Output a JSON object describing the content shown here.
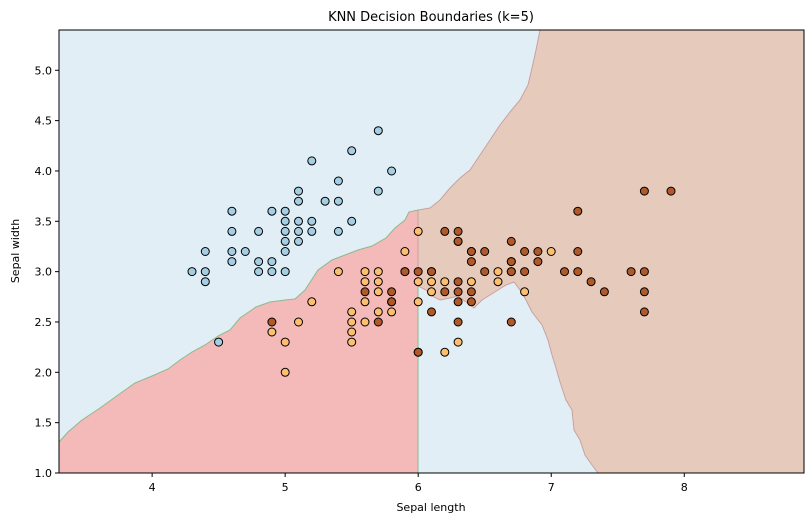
{
  "chart_data": {
    "type": "scatter",
    "title": "KNN Decision Boundaries (k=5)",
    "xlabel": "Sepal length",
    "ylabel": "Sepal width",
    "xlim": [
      3.3,
      8.9
    ],
    "ylim": [
      1.0,
      5.4
    ],
    "xticks": [
      4,
      5,
      6,
      7,
      8
    ],
    "yticks": [
      1.0,
      1.5,
      2.0,
      2.5,
      3.0,
      3.5,
      4.0,
      4.5,
      5.0
    ],
    "grid": false,
    "legend": "none",
    "regions": [
      {
        "class": "class-0",
        "color": "#e1eef5"
      },
      {
        "class": "class-1",
        "color": "#f4b9b9"
      },
      {
        "class": "class-2",
        "color": "#e6cbbd"
      }
    ],
    "series": [
      {
        "class": "class-0",
        "color": "#a6cee3",
        "points": [
          [
            4.3,
            3.0
          ],
          [
            4.4,
            3.0
          ],
          [
            4.4,
            2.9
          ],
          [
            4.4,
            3.2
          ],
          [
            4.5,
            2.3
          ],
          [
            4.6,
            3.1
          ],
          [
            4.6,
            3.2
          ],
          [
            4.6,
            3.4
          ],
          [
            4.6,
            3.6
          ],
          [
            4.7,
            3.2
          ],
          [
            4.8,
            3.0
          ],
          [
            4.8,
            3.1
          ],
          [
            4.8,
            3.4
          ],
          [
            4.9,
            3.0
          ],
          [
            4.9,
            3.1
          ],
          [
            4.9,
            3.6
          ],
          [
            5.0,
            3.0
          ],
          [
            5.0,
            3.2
          ],
          [
            5.0,
            3.3
          ],
          [
            5.0,
            3.4
          ],
          [
            5.0,
            3.5
          ],
          [
            5.0,
            3.6
          ],
          [
            5.1,
            3.3
          ],
          [
            5.1,
            3.4
          ],
          [
            5.1,
            3.5
          ],
          [
            5.1,
            3.7
          ],
          [
            5.1,
            3.8
          ],
          [
            5.2,
            3.4
          ],
          [
            5.2,
            3.5
          ],
          [
            5.2,
            4.1
          ],
          [
            5.3,
            3.7
          ],
          [
            5.4,
            3.4
          ],
          [
            5.4,
            3.7
          ],
          [
            5.4,
            3.9
          ],
          [
            5.5,
            3.5
          ],
          [
            5.5,
            4.2
          ],
          [
            5.7,
            3.8
          ],
          [
            5.7,
            4.4
          ],
          [
            5.8,
            4.0
          ]
        ]
      },
      {
        "class": "class-1",
        "color": "#fdbf6f",
        "points": [
          [
            4.9,
            2.4
          ],
          [
            5.0,
            2.0
          ],
          [
            5.0,
            2.3
          ],
          [
            5.1,
            2.5
          ],
          [
            5.2,
            2.7
          ],
          [
            5.4,
            3.0
          ],
          [
            5.5,
            2.3
          ],
          [
            5.5,
            2.4
          ],
          [
            5.5,
            2.5
          ],
          [
            5.5,
            2.6
          ],
          [
            5.6,
            2.5
          ],
          [
            5.6,
            2.7
          ],
          [
            5.6,
            2.9
          ],
          [
            5.6,
            3.0
          ],
          [
            5.7,
            2.6
          ],
          [
            5.7,
            2.8
          ],
          [
            5.7,
            2.9
          ],
          [
            5.7,
            3.0
          ],
          [
            5.8,
            2.6
          ],
          [
            5.8,
            2.7
          ],
          [
            5.9,
            3.0
          ],
          [
            5.9,
            3.2
          ],
          [
            6.0,
            2.2
          ],
          [
            6.0,
            2.7
          ],
          [
            6.0,
            2.9
          ],
          [
            6.0,
            3.4
          ],
          [
            6.1,
            2.8
          ],
          [
            6.1,
            2.9
          ],
          [
            6.1,
            3.0
          ],
          [
            6.2,
            2.2
          ],
          [
            6.2,
            2.9
          ],
          [
            6.3,
            2.3
          ],
          [
            6.3,
            3.3
          ],
          [
            6.4,
            2.9
          ],
          [
            6.4,
            3.2
          ],
          [
            6.6,
            2.9
          ],
          [
            6.6,
            3.0
          ],
          [
            6.7,
            3.0
          ],
          [
            6.7,
            3.1
          ],
          [
            6.8,
            2.8
          ],
          [
            7.0,
            3.2
          ]
        ]
      },
      {
        "class": "class-2",
        "color": "#b15928",
        "points": [
          [
            4.9,
            2.5
          ],
          [
            5.6,
            2.8
          ],
          [
            5.7,
            2.5
          ],
          [
            5.8,
            2.7
          ],
          [
            5.8,
            2.8
          ],
          [
            5.9,
            3.0
          ],
          [
            6.0,
            2.2
          ],
          [
            6.0,
            3.0
          ],
          [
            6.1,
            2.6
          ],
          [
            6.1,
            3.0
          ],
          [
            6.2,
            2.8
          ],
          [
            6.2,
            3.4
          ],
          [
            6.3,
            2.5
          ],
          [
            6.3,
            2.7
          ],
          [
            6.3,
            2.8
          ],
          [
            6.3,
            2.9
          ],
          [
            6.3,
            3.3
          ],
          [
            6.3,
            3.4
          ],
          [
            6.4,
            2.7
          ],
          [
            6.4,
            2.8
          ],
          [
            6.4,
            3.1
          ],
          [
            6.4,
            3.2
          ],
          [
            6.5,
            3.0
          ],
          [
            6.5,
            3.2
          ],
          [
            6.7,
            2.5
          ],
          [
            6.7,
            3.0
          ],
          [
            6.7,
            3.1
          ],
          [
            6.7,
            3.3
          ],
          [
            6.8,
            3.0
          ],
          [
            6.8,
            3.2
          ],
          [
            6.9,
            3.1
          ],
          [
            6.9,
            3.2
          ],
          [
            7.1,
            3.0
          ],
          [
            7.2,
            3.0
          ],
          [
            7.2,
            3.2
          ],
          [
            7.2,
            3.6
          ],
          [
            7.3,
            2.9
          ],
          [
            7.4,
            2.8
          ],
          [
            7.6,
            3.0
          ],
          [
            7.7,
            2.6
          ],
          [
            7.7,
            2.8
          ],
          [
            7.7,
            3.0
          ],
          [
            7.7,
            3.8
          ],
          [
            7.9,
            3.8
          ]
        ]
      }
    ]
  }
}
